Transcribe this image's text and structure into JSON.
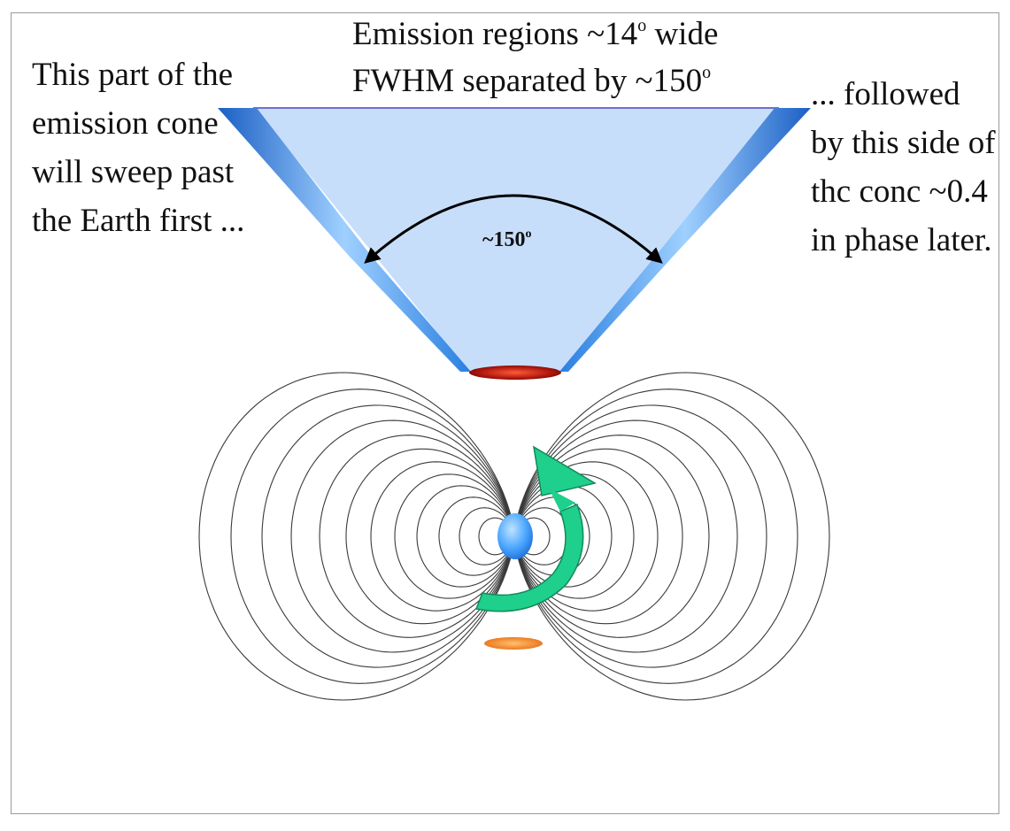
{
  "labels": {
    "top_line1": "Emission regions ~14",
    "top_line1_sup": "o",
    "top_line1_end": " wide",
    "top_line2": "FWHM separated by ~150",
    "top_line2_sup": "o",
    "left_lines": [
      "This part of the",
      "emission cone",
      "will sweep past",
      "the Earth first ..."
    ],
    "right_lines": [
      "... followed",
      "by this side of",
      "thc conc ~0.4",
      "in phase later."
    ],
    "angle_label": "~150",
    "angle_sup": "o"
  },
  "colors": {
    "cone_fill": "#c7defa",
    "cone_top_edge": "#6f6fd0",
    "beam_blue": "#2a7fe0",
    "beam_light": "#8ec5ff",
    "field_line": "#3a3a3a",
    "star": "#4aa6ff",
    "north_cap": "#a8120a",
    "south_cap": "#f07a18",
    "rotation_arrow": "#1fcf8c",
    "angle_arrow": "#000000"
  },
  "icons": {
    "rotation": "curved-rotation-arrow-icon",
    "angle": "double-headed-arc-arrow-icon"
  }
}
